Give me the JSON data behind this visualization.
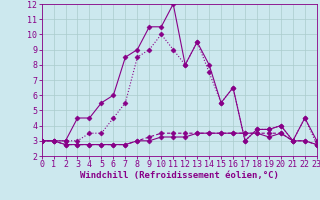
{
  "xlabel": "Windchill (Refroidissement éolien,°C)",
  "x": [
    0,
    1,
    2,
    3,
    4,
    5,
    6,
    7,
    8,
    9,
    10,
    11,
    12,
    13,
    14,
    15,
    16,
    17,
    18,
    19,
    20,
    21,
    22,
    23
  ],
  "line1": [
    3.0,
    3.0,
    3.0,
    4.5,
    4.5,
    5.5,
    6.0,
    8.5,
    9.0,
    10.5,
    10.5,
    12.0,
    8.0,
    9.5,
    8.0,
    5.5,
    6.5,
    3.0,
    3.75,
    3.75,
    4.0,
    3.0,
    4.5,
    3.0
  ],
  "line2": [
    3.0,
    3.0,
    3.0,
    3.0,
    3.5,
    3.5,
    4.5,
    5.5,
    8.5,
    9.0,
    10.0,
    9.0,
    8.0,
    9.5,
    7.5,
    5.5,
    6.5,
    3.0,
    3.75,
    3.75,
    4.0,
    3.0,
    4.5,
    2.75
  ],
  "line3": [
    3.0,
    3.0,
    2.75,
    2.75,
    2.75,
    2.75,
    2.75,
    2.75,
    3.0,
    3.25,
    3.5,
    3.5,
    3.5,
    3.5,
    3.5,
    3.5,
    3.5,
    3.5,
    3.5,
    3.5,
    3.5,
    3.0,
    3.0,
    2.75
  ],
  "line4": [
    3.0,
    3.0,
    2.75,
    2.75,
    2.75,
    2.75,
    2.75,
    2.75,
    3.0,
    3.0,
    3.25,
    3.25,
    3.25,
    3.5,
    3.5,
    3.5,
    3.5,
    3.5,
    3.5,
    3.25,
    3.5,
    3.0,
    3.0,
    2.75
  ],
  "ylim": [
    2,
    12
  ],
  "xlim": [
    0,
    23
  ],
  "yticks": [
    2,
    3,
    4,
    5,
    6,
    7,
    8,
    9,
    10,
    11,
    12
  ],
  "xticks": [
    0,
    1,
    2,
    3,
    4,
    5,
    6,
    7,
    8,
    9,
    10,
    11,
    12,
    13,
    14,
    15,
    16,
    17,
    18,
    19,
    20,
    21,
    22,
    23
  ],
  "line_color": "#880088",
  "bg_color": "#cce8ee",
  "grid_color": "#aacccc",
  "marker": "D",
  "marker_size": 2.5,
  "line_width": 0.8,
  "tick_fontsize": 6.0,
  "xlabel_fontsize": 6.5
}
